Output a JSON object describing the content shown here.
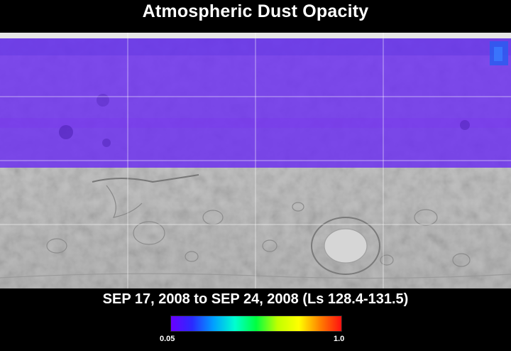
{
  "title": "Atmospheric Dust Opacity",
  "date_range": "SEP 17, 2008 to SEP 24, 2008 (Ls 128.4-131.5)",
  "colorbar": {
    "min_label": "0.05",
    "max_label": "1.0",
    "colors": [
      "#6a00ff",
      "#2a2aff",
      "#00a0ff",
      "#00ffd0",
      "#00ff40",
      "#c0ff00",
      "#ffff00",
      "#ff8000",
      "#ff1010"
    ]
  },
  "map": {
    "overlay_color": "#6a2cf0",
    "coverage": "northern hemisphere (latitude 0 to 60N)"
  }
}
